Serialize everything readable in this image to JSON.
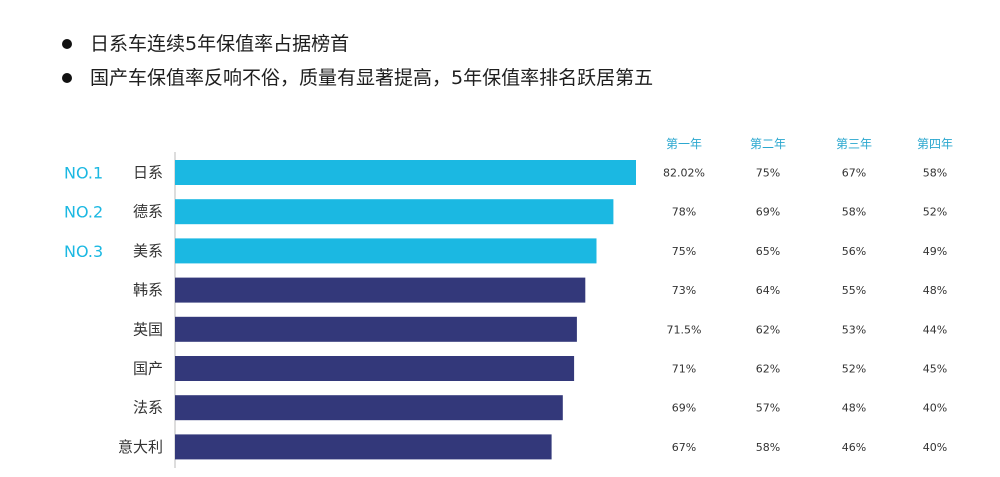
{
  "bullets": [
    "日系车连续5年保值率占据榜首",
    "国产车保值率反响不俗，质量有显著提高，5年保值率排名跃居第五"
  ],
  "colors": {
    "accent": "#1bb8e2",
    "bar_top3": "#1bb8e2",
    "bar_other": "#33387a",
    "header": "#2aa7cf",
    "axis": "#bbbbbb"
  },
  "chart_data": {
    "type": "bar",
    "orientation": "horizontal",
    "categories": [
      "日系",
      "德系",
      "美系",
      "韩系",
      "英国",
      "国产",
      "法系",
      "意大利"
    ],
    "rank_labels": [
      "NO.1",
      "NO.2",
      "NO.3",
      "",
      "",
      "",
      "",
      ""
    ],
    "series": [
      {
        "name": "第一年",
        "values": [
          82.02,
          78,
          75,
          73,
          71.5,
          71,
          69,
          67
        ]
      }
    ],
    "table": {
      "columns": [
        "第一年",
        "第二年",
        "第三年",
        "第四年"
      ],
      "rows": [
        [
          "82.02%",
          "75%",
          "67%",
          "58%"
        ],
        [
          "78%",
          "69%",
          "58%",
          "52%"
        ],
        [
          "75%",
          "65%",
          "56%",
          "49%"
        ],
        [
          "73%",
          "64%",
          "55%",
          "48%"
        ],
        [
          "71.5%",
          "62%",
          "53%",
          "44%"
        ],
        [
          "71%",
          "62%",
          "52%",
          "45%"
        ],
        [
          "69%",
          "57%",
          "48%",
          "40%"
        ],
        [
          "67%",
          "58%",
          "46%",
          "40%"
        ]
      ]
    },
    "highlight_count": 3
  }
}
